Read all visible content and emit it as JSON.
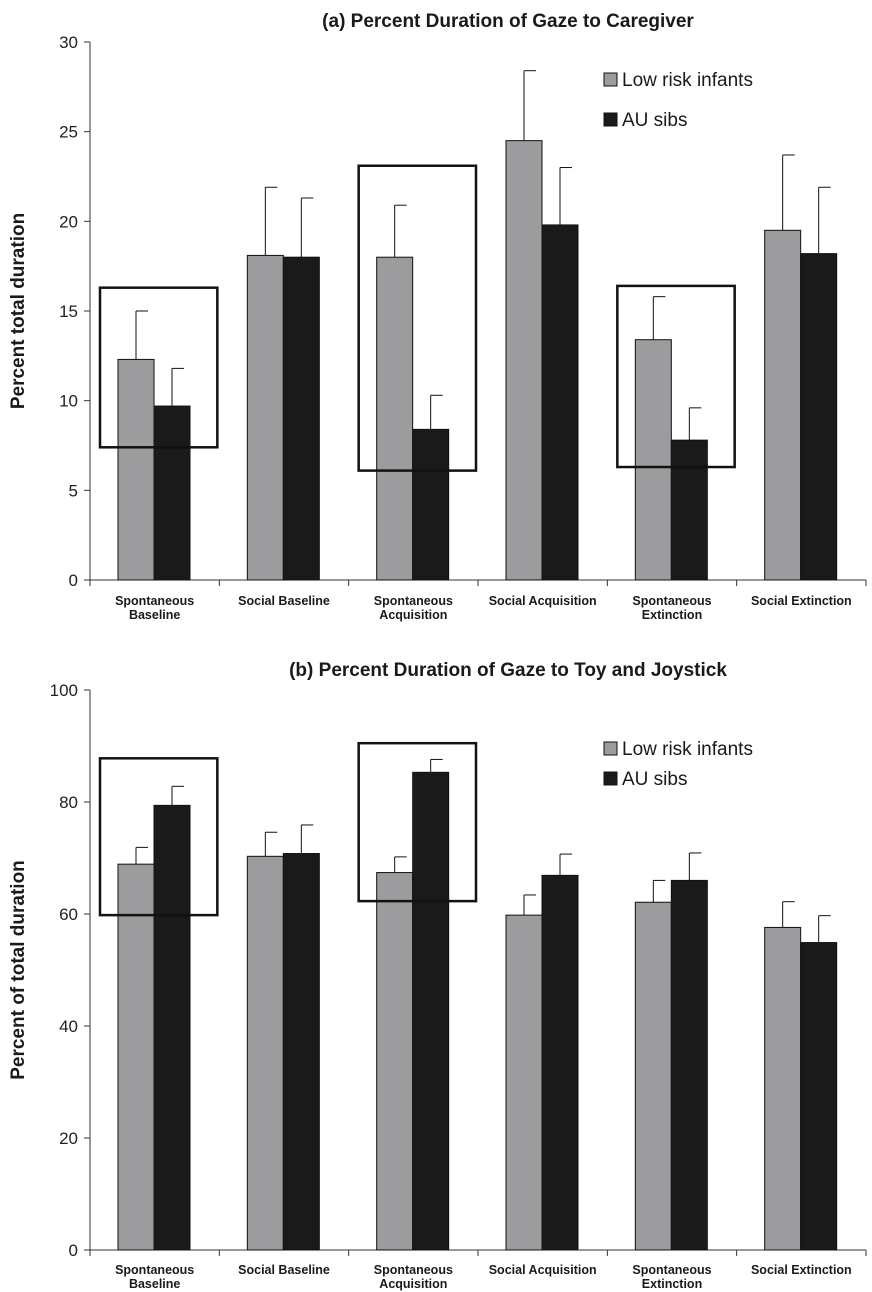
{
  "chart_data": [
    {
      "type": "bar",
      "title": "(a) Percent Duration of Gaze to Caregiver",
      "ylabel": "Percent total duration",
      "ylim": [
        0,
        30
      ],
      "yticks": [
        0,
        5,
        10,
        15,
        20,
        25,
        30
      ],
      "categories": [
        [
          "Spontaneous",
          "Baseline"
        ],
        [
          "Social Baseline"
        ],
        [
          "Spontaneous",
          "Acquisition"
        ],
        [
          "Social Acquisition"
        ],
        [
          "Spontaneous",
          "Extinction"
        ],
        [
          "Social Extinction"
        ]
      ],
      "series": [
        {
          "name": "Low risk infants",
          "color": "#9c9c9e",
          "values": [
            12.3,
            18.1,
            18.0,
            24.5,
            13.4,
            19.5
          ],
          "errors": [
            2.7,
            3.8,
            2.9,
            3.9,
            2.4,
            4.2
          ]
        },
        {
          "name": "AU sibs",
          "color": "#1a1a1a",
          "values": [
            9.7,
            18.0,
            8.4,
            19.8,
            7.8,
            18.2
          ],
          "errors": [
            2.1,
            3.3,
            1.9,
            3.2,
            1.8,
            3.7
          ]
        }
      ],
      "highlight_boxes": [
        {
          "category_index": 0,
          "y_range": [
            7.4,
            16.3
          ]
        },
        {
          "category_index": 2,
          "y_range": [
            6.1,
            23.1
          ]
        },
        {
          "category_index": 4,
          "y_range": [
            6.3,
            16.4
          ]
        }
      ],
      "legend": "top-right",
      "grid": false
    },
    {
      "type": "bar",
      "title": "(b) Percent Duration of Gaze to Toy and Joystick",
      "ylabel": "Percent of total duration",
      "ylim": [
        0,
        100
      ],
      "yticks": [
        0,
        20,
        40,
        60,
        80,
        100
      ],
      "categories": [
        [
          "Spontaneous",
          "Baseline"
        ],
        [
          "Social Baseline"
        ],
        [
          "Spontaneous",
          "Acquisition"
        ],
        [
          "Social Acquisition"
        ],
        [
          "Spontaneous",
          "Extinction"
        ],
        [
          "Social Extinction"
        ]
      ],
      "series": [
        {
          "name": "Low risk infants",
          "color": "#9c9c9e",
          "values": [
            68.9,
            70.3,
            67.4,
            59.8,
            62.1,
            57.6
          ],
          "errors": [
            3.0,
            4.3,
            2.8,
            3.6,
            3.9,
            4.6
          ]
        },
        {
          "name": "AU sibs",
          "color": "#1a1a1a",
          "values": [
            79.4,
            70.8,
            85.3,
            66.9,
            66.0,
            54.9
          ],
          "errors": [
            3.4,
            5.1,
            2.3,
            3.8,
            4.9,
            4.8
          ]
        }
      ],
      "highlight_boxes": [
        {
          "category_index": 0,
          "y_range": [
            59.8,
            87.8
          ]
        },
        {
          "category_index": 2,
          "y_range": [
            62.3,
            90.5
          ]
        }
      ],
      "legend": "top-right",
      "grid": false
    }
  ]
}
